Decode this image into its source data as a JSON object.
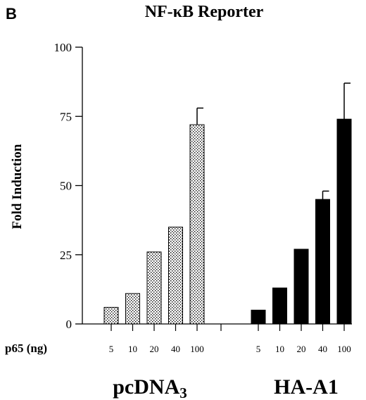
{
  "panel_letter": "B",
  "chart_data": {
    "type": "bar",
    "title": "NF-κB Reporter",
    "ylabel": "Fold Induction",
    "xlabel": "p65 (ng)",
    "ylim": [
      0,
      100
    ],
    "yticks": [
      0,
      25,
      50,
      75,
      100
    ],
    "grid": false,
    "groups": [
      {
        "label_main": "pcDNA",
        "label_sub": "3",
        "categories": [
          "5",
          "10",
          "20",
          "40",
          "100"
        ],
        "values": [
          6,
          11,
          26,
          35,
          72
        ],
        "errors": [
          0,
          0,
          0,
          0,
          6
        ],
        "fill": "stippled",
        "color": "#000000"
      },
      {
        "label_main": "HA-A1",
        "label_sub": "",
        "categories": [
          "5",
          "10",
          "20",
          "40",
          "100"
        ],
        "values": [
          5,
          13,
          27,
          45,
          74
        ],
        "errors": [
          0,
          0,
          0,
          3,
          13
        ],
        "fill": "solid",
        "color": "#000000"
      }
    ]
  }
}
